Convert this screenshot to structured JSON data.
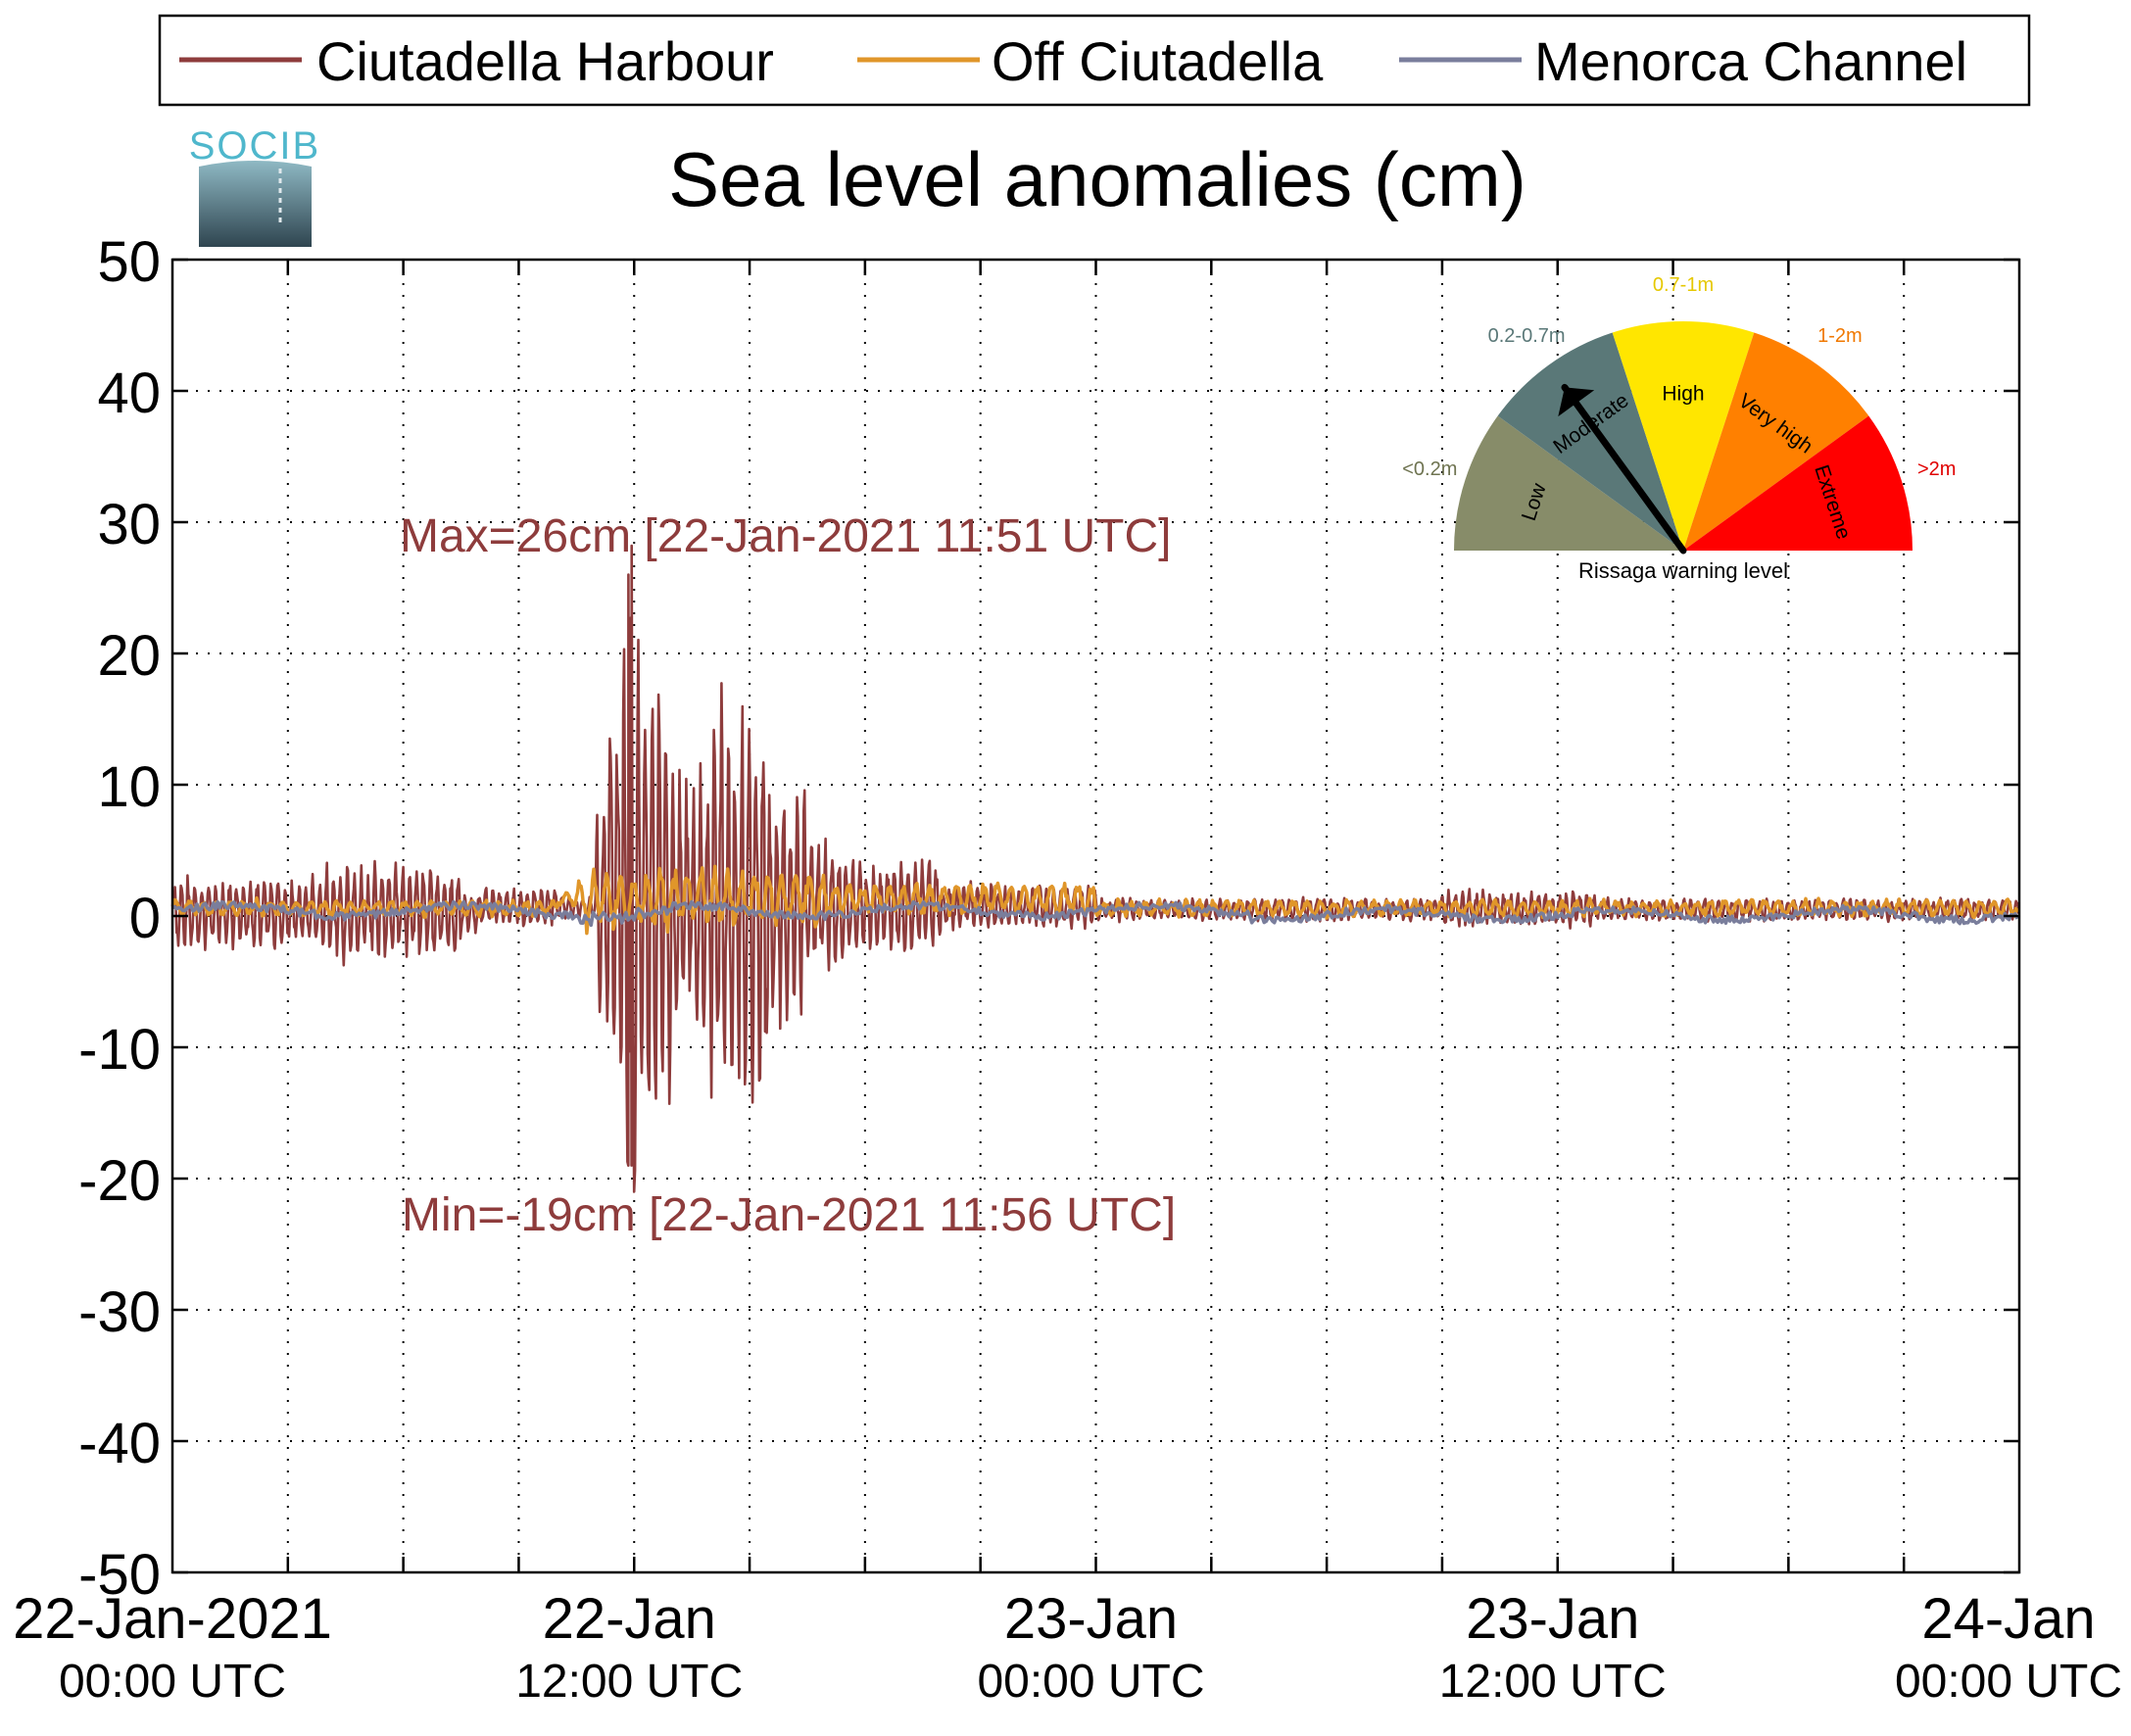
{
  "chart_data": {
    "type": "line",
    "title": "Sea level anomalies (cm)",
    "ylim": [
      -50,
      50
    ],
    "yticks": [
      50,
      40,
      30,
      20,
      10,
      0,
      -10,
      -20,
      -30,
      -40,
      -50
    ],
    "xlim_hours": [
      0,
      48
    ],
    "xticks": [
      {
        "line1": "22-Jan-2021",
        "line2": "00:00 UTC"
      },
      {
        "line1": "22-Jan",
        "line2": "12:00 UTC"
      },
      {
        "line1": "23-Jan",
        "line2": "00:00 UTC"
      },
      {
        "line1": "23-Jan",
        "line2": "12:00 UTC"
      },
      {
        "line1": "24-Jan",
        "line2": "00:00 UTC"
      }
    ],
    "grid": true,
    "legend_position": "top",
    "series": [
      {
        "name": "Ciutadella Harbour",
        "color": "#8e3c3c",
        "max": 26,
        "max_time": "22-Jan-2021 11:51 UTC",
        "min": -19,
        "min_time": "22-Jan-2021 11:56 UTC"
      },
      {
        "name": "Off Ciutadella",
        "color": "#e0962a"
      },
      {
        "name": "Menorca Channel",
        "color": "#7a7e9c"
      }
    ],
    "annotations": {
      "max": "Max=26cm [22-Jan-2021 11:51 UTC]",
      "min": "Min=-19cm [22-Jan-2021 11:56 UTC]"
    }
  },
  "logo": {
    "text": "SOCIB"
  },
  "gauge": {
    "title": "Rissaga warning level",
    "level": "Moderate",
    "sectors": [
      {
        "name": "Low",
        "range": "<0.2m",
        "color": "#878c69",
        "range_color": "#6e7350"
      },
      {
        "name": "Moderate",
        "range": "0.2-0.7m",
        "color": "#5a7878",
        "range_color": "#5a7878"
      },
      {
        "name": "High",
        "range": "0.7-1m",
        "color": "#ffe600",
        "range_color": "#e6c800"
      },
      {
        "name": "Very high",
        "range": "1-2m",
        "color": "#ff8000",
        "range_color": "#f07800"
      },
      {
        "name": "Extreme",
        "range": ">2m",
        "color": "#ff0000",
        "range_color": "#e00000"
      }
    ]
  }
}
